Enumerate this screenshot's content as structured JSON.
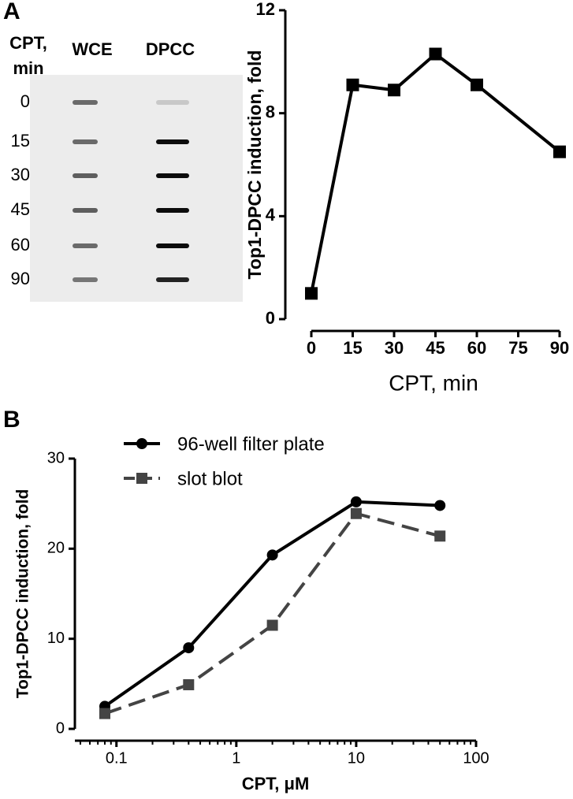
{
  "figure": {
    "panel_labels": [
      "A",
      "B"
    ],
    "blot": {
      "row_header": [
        "CPT,",
        "min"
      ],
      "columns": [
        "WCE",
        "DPCC"
      ],
      "lanes": [
        "0",
        "15",
        "30",
        "45",
        "60",
        "90"
      ]
    }
  },
  "chart_data": [
    {
      "type": "line",
      "ylabel": "Top1-DPCC induction, fold",
      "xlabel": "CPT, min",
      "x": [
        0,
        15,
        30,
        45,
        60,
        90
      ],
      "series": [
        {
          "color": "#000000",
          "marker": "square",
          "dash": false,
          "values": [
            1.0,
            9.1,
            8.9,
            10.3,
            9.1,
            6.5
          ]
        }
      ],
      "xlim": [
        0,
        90
      ],
      "xticks": [
        0,
        15,
        30,
        45,
        60,
        75,
        90
      ],
      "ylim": [
        0,
        12
      ],
      "yticks": [
        0,
        4,
        8,
        12
      ]
    },
    {
      "type": "line",
      "ylabel": "Top1-DPCC induction, fold",
      "xlabel": "CPT, μM",
      "x": [
        0.08,
        0.4,
        2,
        10,
        50
      ],
      "xscale": "log",
      "legend": "upper left",
      "series": [
        {
          "name": "96-well filter plate",
          "color": "#000000",
          "marker": "circle",
          "dash": false,
          "values": [
            2.5,
            9.0,
            19.3,
            25.2,
            24.8
          ]
        },
        {
          "name": "slot blot",
          "color": "#444444",
          "marker": "square",
          "dash": true,
          "values": [
            1.7,
            4.9,
            11.5,
            23.9,
            21.4
          ]
        }
      ],
      "xlim": [
        0.045,
        100
      ],
      "xticks": [
        0.1,
        1,
        10,
        100
      ],
      "ylim": [
        0,
        30
      ],
      "yticks": [
        0,
        10,
        20,
        30
      ]
    }
  ]
}
